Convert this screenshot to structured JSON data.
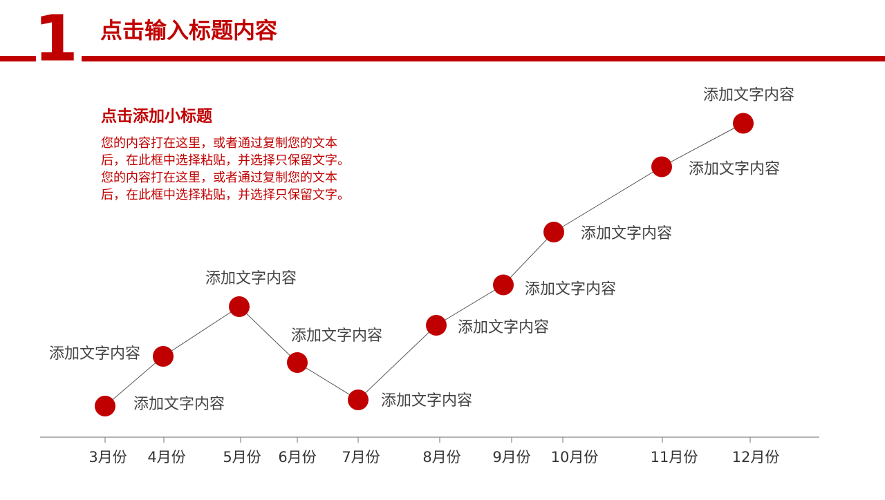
{
  "chart_data": {
    "type": "line",
    "title_number": "1",
    "title": "点击输入标题内容",
    "subtitle": "点击添加小标题",
    "body_lines": [
      "您的内容打在这里，或者通过复制您的文本",
      "后，在此框中选择粘贴，并选择只保留文字。",
      "您的内容打在这里，或者通过复制您的文本",
      "后，在此框中选择粘贴，并选择只保留文字。"
    ],
    "categories": [
      "3月份",
      "4月份",
      "5月份",
      "6月份",
      "7月份",
      "8月份",
      "9月份",
      "10月份",
      "11月份",
      "12月份"
    ],
    "values": [
      10,
      26,
      42,
      24,
      12,
      36,
      49,
      66,
      87,
      101
    ],
    "point_labels": [
      "添加文字内容",
      "添加文字内容",
      "添加文字内容",
      "添加文字内容",
      "添加文字内容",
      "添加文字内容",
      "添加文字内容",
      "添加文字内容",
      "添加文字内容",
      "添加文字内容"
    ],
    "ylim": [
      0,
      110
    ],
    "color": "#c00000"
  }
}
